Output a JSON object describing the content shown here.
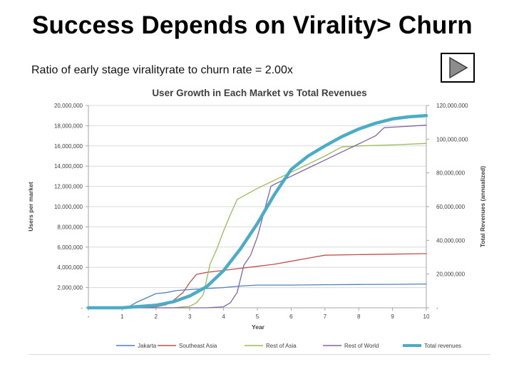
{
  "slide": {
    "title": "Success Depends on Virality> Churn",
    "subtitle": "Ratio of early stage viralityrate to churn rate = 2.00x",
    "play_icon": "play-icon"
  },
  "chart_data": {
    "type": "line",
    "title": "User Growth in Each Market vs Total Revenues",
    "xlabel": "Year",
    "ylabel": "Users per market",
    "y2label": "Total Revenues (annualized)",
    "xlim": [
      0,
      10
    ],
    "ylim": [
      0,
      20000000
    ],
    "y2lim": [
      0,
      120000000
    ],
    "x_tick_labels": [
      "-",
      "1",
      "2",
      "3",
      "4",
      "5",
      "6",
      "7",
      "8",
      "9",
      "10"
    ],
    "y_tick_labels": [
      "-",
      "2,000,000",
      "4,000,000",
      "6,000,000",
      "8,000,000",
      "10,000,000",
      "12,000,000",
      "14,000,000",
      "16,000,000",
      "18,000,000",
      "20,000,000"
    ],
    "y2_tick_labels": [
      "-",
      "20,000,000",
      "40,000,000",
      "60,000,000",
      "80,000,000",
      "100,000,000",
      "120,000,000"
    ],
    "grid": "horizontal",
    "legend_position": "bottom",
    "series": [
      {
        "name": "Jakarta",
        "color": "#4f81bd",
        "width": 1.3,
        "axis": "left",
        "x": [
          0,
          1,
          1.2,
          1.4,
          1.6,
          1.8,
          2.0,
          2.3,
          2.6,
          3.0,
          3.5,
          4.0,
          4.5,
          5.0,
          6.0,
          7.0,
          8.0,
          9.0,
          10.0
        ],
        "y": [
          0,
          0,
          100000,
          500000,
          800000,
          1100000,
          1400000,
          1500000,
          1700000,
          1800000,
          1900000,
          2000000,
          2150000,
          2250000,
          2250000,
          2280000,
          2300000,
          2320000,
          2350000
        ]
      },
      {
        "name": "Southeast Asia",
        "color": "#c0504d",
        "width": 1.3,
        "axis": "left",
        "x": [
          0,
          1.5,
          2.0,
          2.3,
          2.5,
          2.8,
          3.0,
          3.2,
          3.5,
          4.0,
          4.5,
          5.0,
          5.5,
          6.0,
          6.5,
          7.0,
          8.0,
          9.0,
          10.0
        ],
        "y": [
          0,
          0,
          100000,
          300000,
          700000,
          1500000,
          2500000,
          3300000,
          3500000,
          3700000,
          3900000,
          4100000,
          4300000,
          4600000,
          4900000,
          5200000,
          5250000,
          5300000,
          5350000
        ]
      },
      {
        "name": "Rest of Asia",
        "color": "#9bbb59",
        "width": 1.3,
        "axis": "left",
        "x": [
          0,
          2.5,
          3.0,
          3.2,
          3.4,
          3.5,
          3.6,
          3.8,
          4.0,
          4.2,
          4.4,
          5.0,
          5.5,
          6.0,
          6.5,
          7.0,
          7.5,
          8.0,
          9.0,
          10.0
        ],
        "y": [
          0,
          0,
          150000,
          500000,
          1300000,
          2800000,
          4300000,
          5800000,
          7600000,
          9200000,
          10700000,
          11800000,
          12600000,
          13400000,
          14200000,
          15000000,
          15900000,
          16000000,
          16100000,
          16250000
        ]
      },
      {
        "name": "Rest of World",
        "color": "#8064a2",
        "width": 1.3,
        "axis": "left",
        "x": [
          0,
          3.5,
          4.0,
          4.2,
          4.4,
          4.6,
          4.8,
          5.0,
          5.2,
          5.4,
          5.5,
          6.0,
          6.5,
          7.0,
          7.5,
          8.0,
          8.5,
          8.75,
          9.0,
          10.0
        ],
        "y": [
          0,
          0,
          100000,
          500000,
          1500000,
          4200000,
          5200000,
          7000000,
          9500000,
          12000000,
          12200000,
          13000000,
          13800000,
          14600000,
          15400000,
          16200000,
          17000000,
          17800000,
          17850000,
          18050000
        ]
      },
      {
        "name": "Total revenues",
        "color": "#4bacc6",
        "width": 4.5,
        "axis": "right",
        "x": [
          0,
          1.0,
          2.0,
          2.5,
          3.0,
          3.5,
          4.0,
          4.5,
          5.0,
          5.5,
          6.0,
          6.5,
          7.0,
          7.5,
          8.0,
          8.5,
          9.0,
          9.5,
          10.0
        ],
        "y": [
          0,
          0,
          1500000,
          3500000,
          7000000,
          12500000,
          22000000,
          35000000,
          50000000,
          67000000,
          82000000,
          90000000,
          96000000,
          101500000,
          106000000,
          109500000,
          112000000,
          113300000,
          114000000
        ]
      }
    ]
  }
}
